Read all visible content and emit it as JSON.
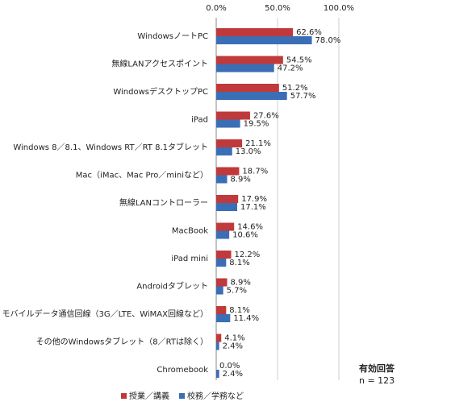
{
  "chart_data": {
    "type": "barh",
    "categories": [
      "WindowsノートPC",
      "無線LANアクセスポイント",
      "WindowsデスクトップPC",
      "iPad",
      "Windows 8／8.1、Windows RT／RT 8.1タブレット",
      "Mac（iMac、Mac Pro／miniなど）",
      "無線LANコントローラー",
      "MacBook",
      "iPad mini",
      "Androidタブレット",
      "モバイルデータ通信回線（3G／LTE、WiMAX回線など）",
      "その他のWindowsタブレット（8／RTは除く）",
      "Chromebook"
    ],
    "series": [
      {
        "name": "授業／講義",
        "color": "#c0393b",
        "values": [
          62.6,
          54.5,
          51.2,
          27.6,
          21.1,
          18.7,
          17.9,
          14.6,
          12.2,
          8.9,
          8.1,
          4.1,
          0.0
        ],
        "value_labels": [
          "62.6%",
          "54.5%",
          "51.2%",
          "27.6%",
          "21.1%",
          "18.7%",
          "17.9%",
          "14.6%",
          "12.2%",
          "8.9%",
          "8.1%",
          "4.1%",
          "0.0%"
        ]
      },
      {
        "name": "校務／学務など",
        "color": "#3a6eb5",
        "values": [
          78.0,
          47.2,
          57.7,
          19.5,
          13.0,
          8.9,
          17.1,
          10.6,
          8.1,
          5.7,
          11.4,
          2.4,
          2.4
        ],
        "value_labels": [
          "78.0%",
          "47.2%",
          "57.7%",
          "19.5%",
          "13.0%",
          "8.9%",
          "17.1%",
          "10.6%",
          "8.1%",
          "5.7%",
          "11.4%",
          "2.4%",
          "2.4%"
        ]
      }
    ],
    "xlim": [
      0,
      100
    ],
    "xticks": [
      {
        "value": 0,
        "label": "0.0%"
      },
      {
        "value": 50,
        "label": "50.0%"
      },
      {
        "value": 100,
        "label": "100.0%"
      }
    ],
    "grid": true,
    "annotations": [
      "有効回答",
      "n = 123"
    ]
  }
}
